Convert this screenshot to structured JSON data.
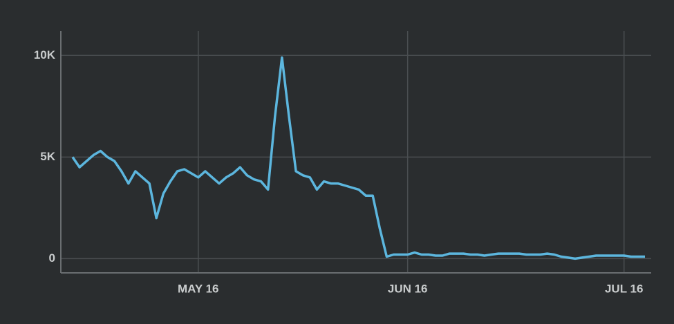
{
  "chart_data": {
    "type": "line",
    "categories": [
      null,
      null,
      null,
      null,
      null,
      null,
      null,
      null,
      null,
      null,
      null,
      null,
      null,
      null,
      null,
      null,
      null,
      null,
      "MAY 16",
      null,
      null,
      null,
      null,
      null,
      null,
      null,
      null,
      null,
      null,
      null,
      null,
      null,
      null,
      null,
      null,
      null,
      null,
      null,
      null,
      null,
      null,
      null,
      null,
      null,
      null,
      null,
      null,
      null,
      "JUN 16",
      null,
      null,
      null,
      null,
      null,
      null,
      null,
      null,
      null,
      null,
      null,
      null,
      null,
      null,
      null,
      null,
      null,
      null,
      null,
      null,
      null,
      null,
      null,
      null,
      null,
      null,
      null,
      null,
      null,
      null,
      "JUL 16",
      null,
      null,
      null
    ],
    "values": [
      5000,
      4500,
      4800,
      5100,
      5300,
      5000,
      4800,
      4300,
      3700,
      4300,
      4000,
      3700,
      2000,
      3200,
      3800,
      4300,
      4400,
      4200,
      4000,
      4300,
      4000,
      3700,
      4000,
      4200,
      4500,
      4100,
      3900,
      3800,
      3400,
      7000,
      9900,
      7000,
      4300,
      4100,
      4000,
      3400,
      3800,
      3700,
      3700,
      3600,
      3500,
      3400,
      3100,
      3100,
      1500,
      100,
      200,
      200,
      200,
      300,
      200,
      200,
      150,
      150,
      250,
      250,
      250,
      200,
      200,
      150,
      200,
      250,
      250,
      250,
      250,
      200,
      200,
      200,
      250,
      200,
      100,
      50,
      0,
      50,
      100,
      150,
      150,
      150,
      150,
      150,
      100,
      100,
      100
    ],
    "color": "#5cb6de",
    "ylim": [
      -700,
      11200
    ],
    "yticks": [
      0,
      {
        "value": 5000,
        "label": "5K"
      },
      {
        "value": 10000,
        "label": "10K"
      }
    ],
    "grid": true
  }
}
